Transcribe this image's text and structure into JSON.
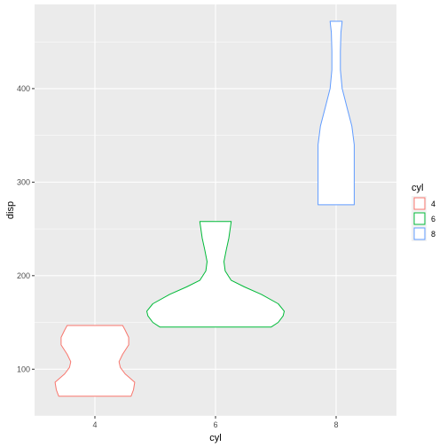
{
  "chart_data": {
    "type": "violin",
    "xlabel": "cyl",
    "ylabel": "disp",
    "categories": [
      "4",
      "6",
      "8"
    ],
    "ylim": [
      50,
      490
    ],
    "yticks": [
      100,
      200,
      300,
      400
    ],
    "grid": true,
    "legend": {
      "title": "cyl",
      "position": "right",
      "entries": [
        "4",
        "6",
        "8"
      ]
    },
    "colors": {
      "4": "#f8766d",
      "6": "#00ba38",
      "8": "#619cff"
    },
    "panel_background": "#ebebeb",
    "violins": [
      {
        "group": "4",
        "profile": [
          [
            71.1,
            0.3
          ],
          [
            78,
            0.32
          ],
          [
            86,
            0.33
          ],
          [
            95,
            0.25
          ],
          [
            102,
            0.21
          ],
          [
            108,
            0.2
          ],
          [
            116,
            0.23
          ],
          [
            126,
            0.28
          ],
          [
            134,
            0.28
          ],
          [
            142,
            0.25
          ],
          [
            146.7,
            0.23
          ]
        ]
      },
      {
        "group": "6",
        "profile": [
          [
            145,
            0.46
          ],
          [
            150,
            0.52
          ],
          [
            157,
            0.56
          ],
          [
            162,
            0.57
          ],
          [
            170,
            0.52
          ],
          [
            180,
            0.38
          ],
          [
            188,
            0.24
          ],
          [
            195,
            0.13
          ],
          [
            205,
            0.08
          ],
          [
            215,
            0.07
          ],
          [
            228,
            0.09
          ],
          [
            240,
            0.11
          ],
          [
            258,
            0.13
          ]
        ]
      },
      {
        "group": "8",
        "profile": [
          [
            275.8,
            0.15
          ],
          [
            290,
            0.15
          ],
          [
            305,
            0.15
          ],
          [
            320,
            0.15
          ],
          [
            340,
            0.15
          ],
          [
            360,
            0.13
          ],
          [
            380,
            0.09
          ],
          [
            400,
            0.05
          ],
          [
            420,
            0.035
          ],
          [
            440,
            0.035
          ],
          [
            460,
            0.04
          ],
          [
            472,
            0.05
          ]
        ]
      }
    ]
  }
}
